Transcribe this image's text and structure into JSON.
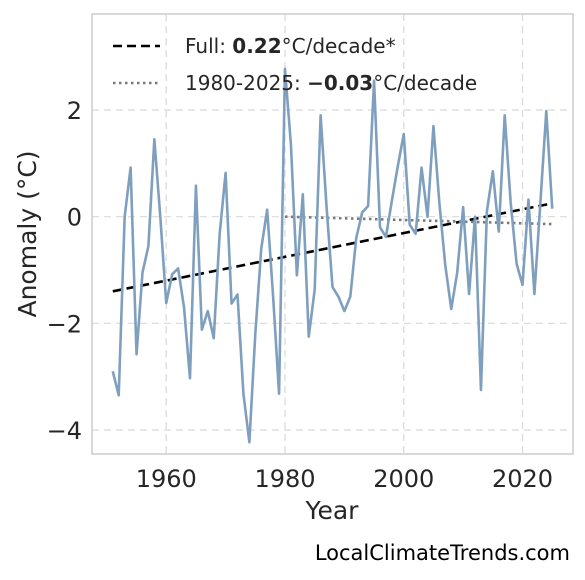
{
  "chart_data": {
    "type": "line",
    "xlabel": "Year",
    "ylabel": "Anomaly (°C)",
    "xlim": [
      1947.5,
      2028.5
    ],
    "ylim": [
      -4.45,
      3.8
    ],
    "xticks": [
      1960,
      1980,
      2000,
      2020
    ],
    "xtick_labels": [
      "1960",
      "1980",
      "2000",
      "2020"
    ],
    "yticks": [
      -4,
      -2,
      0,
      2
    ],
    "ytick_labels": [
      "−4",
      "−2",
      "0",
      "2"
    ],
    "grid": true,
    "legend_position": "top-left",
    "colors": {
      "series": "#7f9fbf",
      "full_trend": "#000000",
      "recent_trend": "#7a7a7a",
      "grid": "#d9d9d9",
      "frame": "#cccccc"
    },
    "series": [
      {
        "type": "line",
        "x": [
          1951,
          1952,
          1953,
          1954,
          1955,
          1956,
          1957,
          1958,
          1959,
          1960,
          1961,
          1962,
          1963,
          1964,
          1965,
          1966,
          1967,
          1968,
          1969,
          1970,
          1971,
          1972,
          1973,
          1974,
          1975,
          1976,
          1977,
          1978,
          1979,
          1980,
          1981,
          1982,
          1983,
          1984,
          1985,
          1986,
          1987,
          1988,
          1989,
          1990,
          1991,
          1992,
          1993,
          1994,
          1995,
          1996,
          1997,
          1998,
          1999,
          2000,
          2001,
          2002,
          2003,
          2004,
          2005,
          2006,
          2007,
          2008,
          2009,
          2010,
          2011,
          2012,
          2013,
          2014,
          2015,
          2016,
          2017,
          2018,
          2019,
          2020,
          2021,
          2022,
          2023,
          2024,
          2025
        ],
        "values": [
          -2.9,
          -3.35,
          0,
          0.92,
          -2.58,
          -1.05,
          -0.55,
          1.45,
          0,
          -1.62,
          -1.08,
          -0.97,
          -1.7,
          -3.03,
          0.58,
          -2.12,
          -1.77,
          -2.28,
          -0.32,
          0.82,
          -1.63,
          -1.46,
          -3.32,
          -4.23,
          -2.2,
          -0.6,
          0.13,
          -1.5,
          -3.32,
          2.77,
          1.35,
          -1.1,
          0.42,
          -2.25,
          -1.37,
          1.9,
          0.18,
          -1.32,
          -1.5,
          -1.77,
          -1.5,
          -0.4,
          0.08,
          0.2,
          2.55,
          -0.2,
          -0.38,
          0.3,
          0.95,
          1.55,
          -0.15,
          -0.32,
          0.92,
          0.0,
          1.7,
          0.25,
          -0.92,
          -1.73,
          -1.05,
          0.18,
          -1.45,
          0.0,
          -3.25,
          0.1,
          0.85,
          -0.28,
          1.9,
          0.27,
          -0.88,
          -1.28,
          0.32,
          -1.45,
          0.25,
          1.98,
          0.15
        ]
      }
    ],
    "trends": [
      {
        "label_prefix": "Full: ",
        "label_value": "0.22",
        "label_suffix": "°C/decade*",
        "style": "dashed",
        "x": [
          1951,
          2025
        ],
        "y": [
          -1.4,
          0.25
        ]
      },
      {
        "label_prefix": "1980-2025: ",
        "label_value": "−0.03",
        "label_suffix": "°C/decade",
        "style": "dotted",
        "x": [
          1980,
          2025
        ],
        "y": [
          0.0,
          -0.14
        ]
      }
    ],
    "watermark": "LocalClimateTrends.com"
  }
}
